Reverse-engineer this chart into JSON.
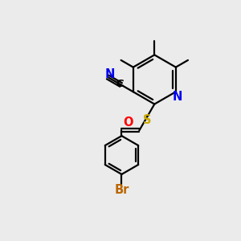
{
  "bg_color": "#ebebeb",
  "bond_lw": 1.6,
  "atom_colors": {
    "N": "#0000ee",
    "S": "#ccaa00",
    "O": "#ff0000",
    "Br": "#bb6600",
    "C": "#000000"
  },
  "figsize": [
    3.0,
    3.0
  ],
  "dpi": 100
}
